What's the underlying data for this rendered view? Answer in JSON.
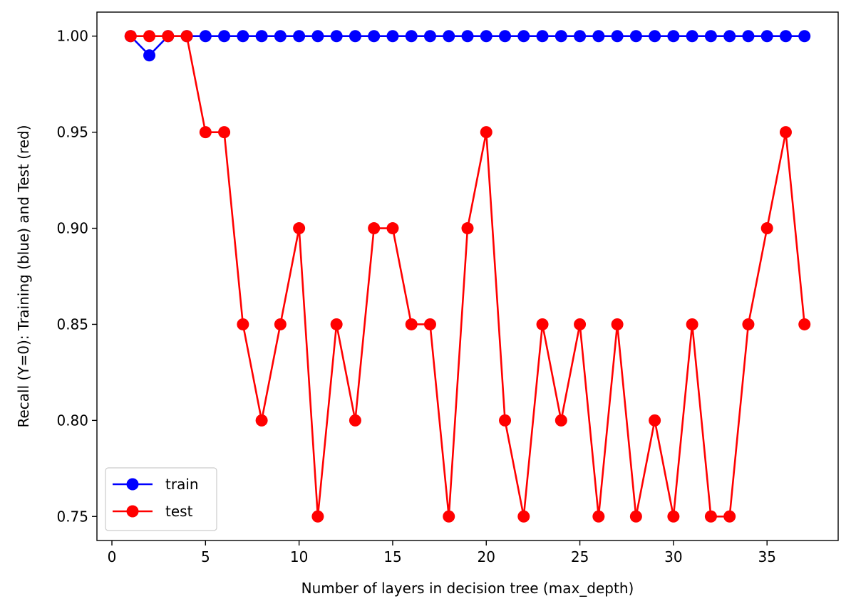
{
  "chart_data": {
    "type": "line",
    "title": "",
    "xlabel": "Number of layers in decision tree (max_depth)",
    "ylabel": "Recall (Y=0): Training (blue) and Test (red)",
    "xlim": [
      -0.8,
      38.8
    ],
    "ylim": [
      0.7375,
      1.0125
    ],
    "xticks": [
      0,
      5,
      10,
      15,
      20,
      25,
      30,
      35
    ],
    "yticks": [
      0.75,
      0.8,
      0.85,
      0.9,
      0.95,
      1.0
    ],
    "ytick_labels": [
      "0.75",
      "0.80",
      "0.85",
      "0.90",
      "0.95",
      "1.00"
    ],
    "grid": false,
    "legend_position": "lower-left",
    "x": [
      1,
      2,
      3,
      4,
      5,
      6,
      7,
      8,
      9,
      10,
      11,
      12,
      13,
      14,
      15,
      16,
      17,
      18,
      19,
      20,
      21,
      22,
      23,
      24,
      25,
      26,
      27,
      28,
      29,
      30,
      31,
      32,
      33,
      34,
      35,
      36,
      37
    ],
    "series": [
      {
        "name": "train",
        "color": "#0000ff",
        "marker": "circle",
        "values": [
          1.0,
          0.99,
          1.0,
          1.0,
          1.0,
          1.0,
          1.0,
          1.0,
          1.0,
          1.0,
          1.0,
          1.0,
          1.0,
          1.0,
          1.0,
          1.0,
          1.0,
          1.0,
          1.0,
          1.0,
          1.0,
          1.0,
          1.0,
          1.0,
          1.0,
          1.0,
          1.0,
          1.0,
          1.0,
          1.0,
          1.0,
          1.0,
          1.0,
          1.0,
          1.0,
          1.0,
          1.0
        ]
      },
      {
        "name": "test",
        "color": "#ff0000",
        "marker": "circle",
        "values": [
          1.0,
          1.0,
          1.0,
          1.0,
          0.95,
          0.95,
          0.85,
          0.8,
          0.85,
          0.9,
          0.75,
          0.85,
          0.8,
          0.9,
          0.9,
          0.85,
          0.85,
          0.75,
          0.9,
          0.95,
          0.8,
          0.75,
          0.85,
          0.8,
          0.85,
          0.75,
          0.85,
          0.75,
          0.8,
          0.75,
          0.85,
          0.75,
          0.75,
          0.85,
          0.9,
          0.95,
          0.85
        ]
      }
    ]
  }
}
